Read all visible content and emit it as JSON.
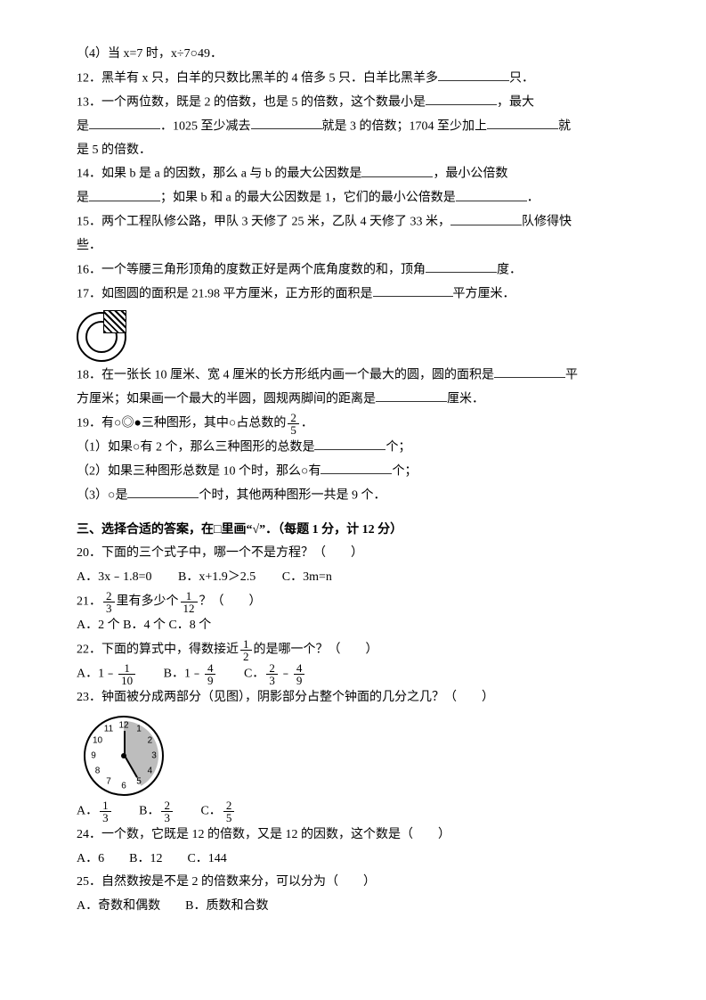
{
  "q11_4": "（4）当 x=7 时，x÷7○49．",
  "q12": "12．黑羊有 x 只，白羊的只数比黑羊的 4 倍多 5 只．白羊比黑羊多",
  "q12_tail": "只．",
  "q13a": "13．一个两位数，既是 2 的倍数，也是 5 的倍数，这个数最小是",
  "q13a_tail": "，最大",
  "q13b_pre": "是",
  "q13b_mid": "．1025 至少减去",
  "q13b_mid2": "就是 3 的倍数；1704 至少加上",
  "q13b_tail": "就",
  "q13c": "是 5 的倍数．",
  "q14a": "14．如果 b 是 a 的因数，那么 a 与 b 的最大公因数是",
  "q14a_tail": "，最小公倍数",
  "q14b_pre": "是",
  "q14b_mid": "；如果 b 和 a 的最大公因数是 1，它们的最小公倍数是",
  "q14b_tail": "．",
  "q15a": "15．两个工程队修公路，甲队 3 天修了 25 米，乙队 4 天修了 33 米，",
  "q15a_tail": "队修得快",
  "q15b": "些．",
  "q16a": "16．一个等腰三角形顶角的度数正好是两个底角度数的和，顶角",
  "q16a_tail": "度．",
  "q17a": "17．如图圆的面积是 21.98 平方厘米，正方形的面积是",
  "q17a_tail": "平方厘米．",
  "q18a": "18．在一张长 10 厘米、宽 4 厘米的长方形纸内画一个最大的圆，圆的面积是",
  "q18a_tail": "平",
  "q18b": "方厘米；如果画一个最大的半圆，圆规两脚间的距离是",
  "q18b_tail": "厘米．",
  "q19a_pre": "19．有○◎●三种图形，其中○占总数的",
  "q19a_tail": "．",
  "q19_1a": "（1）如果○有 2 个，那么三种图形的总数是",
  "q19_1b": "个；",
  "q19_2a": "（2）如果三种图形总数是 10 个时，那么○有",
  "q19_2b": "个；",
  "q19_3a": "（3）○是",
  "q19_3b": "个时，其他两种图形一共是 9 个．",
  "sec3": "三、选择合适的答案，在□里画“√”．（每题 1 分，计 12 分）",
  "q20": "20．下面的三个式子中，哪一个不是方程？（　　）",
  "q20A": "A．3x﹣1.8=0",
  "q20B": "B．x+1.9＞2.5",
  "q20C": "C．3m=n",
  "q21_pre": "21．",
  "q21_mid": "里有多少个",
  "q21_tail": "？（　　）",
  "q21_opts": "A．2 个  B．4 个  C．8 个",
  "q22_pre": "22．下面的算式中，得数接近",
  "q22_tail": "的是哪一个？（　　）",
  "q22A_pre": "A．1﹣",
  "q22B_pre": "B．1﹣",
  "q22C_pre": "C．",
  "q22C_mid": "﹣",
  "q23": "23．钟面被分成两部分（见图），阴影部分占整个钟面的几分之几？（　　）",
  "q23A": "A．",
  "q23B": "B．",
  "q23C": "C．",
  "q24": "24．一个数，它既是 12 的倍数，又是 12 的因数，这个数是（　　）",
  "q24_opts": "A．6　　B．12　　C．144",
  "q25": "25．自然数按是不是 2 的倍数来分，可以分为（　　）",
  "q25_opts": "A．奇数和偶数　　B．质数和合数",
  "fracs": {
    "f25n": "2",
    "f25d": "5",
    "f23n": "2",
    "f23d": "3",
    "f112n": "1",
    "f112d": "12",
    "f12n": "1",
    "f12d": "2",
    "f110n": "1",
    "f110d": "10",
    "f49n": "4",
    "f49d": "9",
    "f23bn": "2",
    "f23bd": "3",
    "f49bn": "4",
    "f49bd": "9",
    "f13n": "1",
    "f13d": "3",
    "f23cn": "2",
    "f23cd": "3",
    "f25cn": "2",
    "f25cd": "5"
  },
  "clock": {
    "numbers": [
      "12",
      "1",
      "2",
      "3",
      "4",
      "5",
      "6",
      "7",
      "8",
      "9",
      "10",
      "11"
    ],
    "shade_from_deg": 0,
    "shade_to_deg": 150
  }
}
